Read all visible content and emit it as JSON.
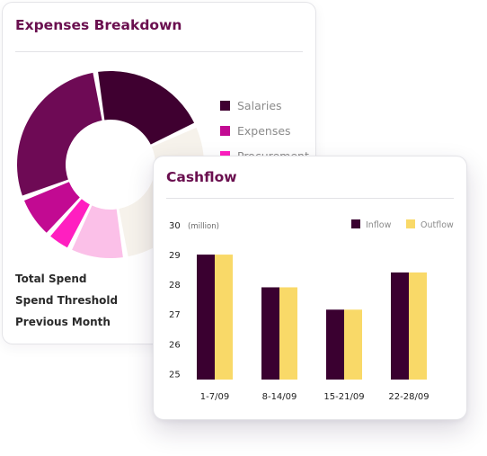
{
  "expenses": {
    "title": "Expenses Breakdown",
    "legend": [
      {
        "label": "Salaries",
        "color": "#3f0030"
      },
      {
        "label": "Expenses",
        "color": "#c20a92"
      },
      {
        "label": "Procurement",
        "color": "#ff1fc0"
      }
    ],
    "donut_segments": [
      {
        "color": "#6e0a55",
        "share": 0.26
      },
      {
        "color": "#3f0030",
        "share": 0.19
      },
      {
        "color": "#f6f2eb",
        "share": 0.27
      },
      {
        "color": "#fbc0e8",
        "share": 0.09
      },
      {
        "color": "#ff1fc0",
        "share": 0.04
      },
      {
        "color": "#c20a92",
        "share": 0.07
      }
    ],
    "stats": [
      "Total Spend",
      "Spend Threshold",
      "Previous Month"
    ]
  },
  "cashflow": {
    "title": "Cashflow",
    "chart_data": {
      "type": "bar",
      "categories": [
        "1-7/09",
        "8-14/09",
        "15-21/09",
        "22-28/09"
      ],
      "series": [
        {
          "name": "Inflow",
          "color": "#3a0030",
          "values": [
            29,
            27.9,
            27.15,
            28.4
          ]
        },
        {
          "name": "Outflow",
          "color": "#f9d968",
          "values": [
            29,
            27.9,
            27.15,
            28.4
          ]
        }
      ],
      "ylim": [
        24.8,
        30
      ],
      "yticks": [
        "25",
        "26",
        "27",
        "28",
        "29",
        "30"
      ],
      "unit_label": "(million)",
      "grid": false,
      "legend_position": "top-right"
    }
  }
}
